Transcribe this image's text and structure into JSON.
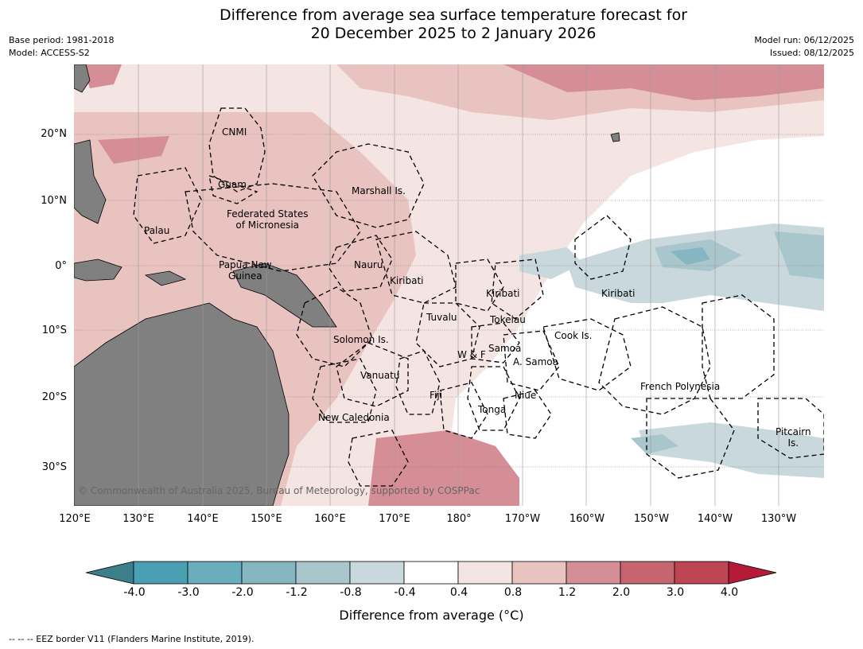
{
  "title": {
    "line1": "Difference from average sea surface temperature forecast for",
    "line2": "20 December 2025 to 2 January 2026"
  },
  "meta_left": {
    "base_period": "Base period: 1981-2018",
    "model": "Model: ACCESS-S2"
  },
  "meta_right": {
    "model_run": "Model run: 06/12/2025",
    "issued": "Issued: 08/12/2025"
  },
  "lat_labels": [
    "20°N",
    "10°N",
    "0°",
    "10°S",
    "20°S",
    "30°S"
  ],
  "lon_labels": [
    "120°E",
    "130°E",
    "140°E",
    "150°E",
    "160°E",
    "170°E",
    "180°",
    "170°W",
    "160°W",
    "150°W",
    "140°W",
    "130°W"
  ],
  "places": {
    "cnmi": "CNMI",
    "guam": "Guam",
    "marshall": "Marshall Is.",
    "fsm_line1": "Federated States",
    "fsm_line2": "of Micronesia",
    "palau": "Palau",
    "png_line1": "Papua New",
    "png_line2": "Guinea",
    "nauru": "Nauru",
    "kiribati_w": "Kiribati",
    "kiribati_c": "Kiribati",
    "kiribati_e": "Kiribati",
    "tuvalu": "Tuvalu",
    "tokelau": "Tokelau",
    "cook": "Cook Is.",
    "solomon": "Solomon Is.",
    "samoa": "Samoa",
    "wf": "W & F",
    "asamoa": "A. Samoa",
    "vanuatu": "Vanuatu",
    "fiji": "Fiji",
    "niue": "Niue",
    "tonga": "Tonga",
    "fp": "French Polynesia",
    "newcal": "New Caledonia",
    "pitcairn_line1": "Pitcairn",
    "pitcairn_line2": "Is."
  },
  "copyright": "© Commonwealth of Australia 2025, Bureau of Meteorology, supported by COSPPac",
  "colorbar": {
    "ticks": [
      "-4.0",
      "-3.0",
      "-2.0",
      "-1.2",
      "-0.8",
      "-0.4",
      "0.4",
      "0.8",
      "1.2",
      "2.0",
      "3.0",
      "4.0"
    ],
    "colors": [
      "#3b7f8b",
      "#4aa0b2",
      "#6aaebd",
      "#86b6c1",
      "#a8c6cc",
      "#c8d8dd",
      "#ffffff",
      "#f4e4e2",
      "#e8c3bf",
      "#d68e96",
      "#c6656f",
      "#be4553",
      "#b21c39"
    ],
    "label": "Difference from average (°C)"
  },
  "footnote": "--  --  -- EEZ border V11 (Flanders Marine Institute, 2019)."
}
